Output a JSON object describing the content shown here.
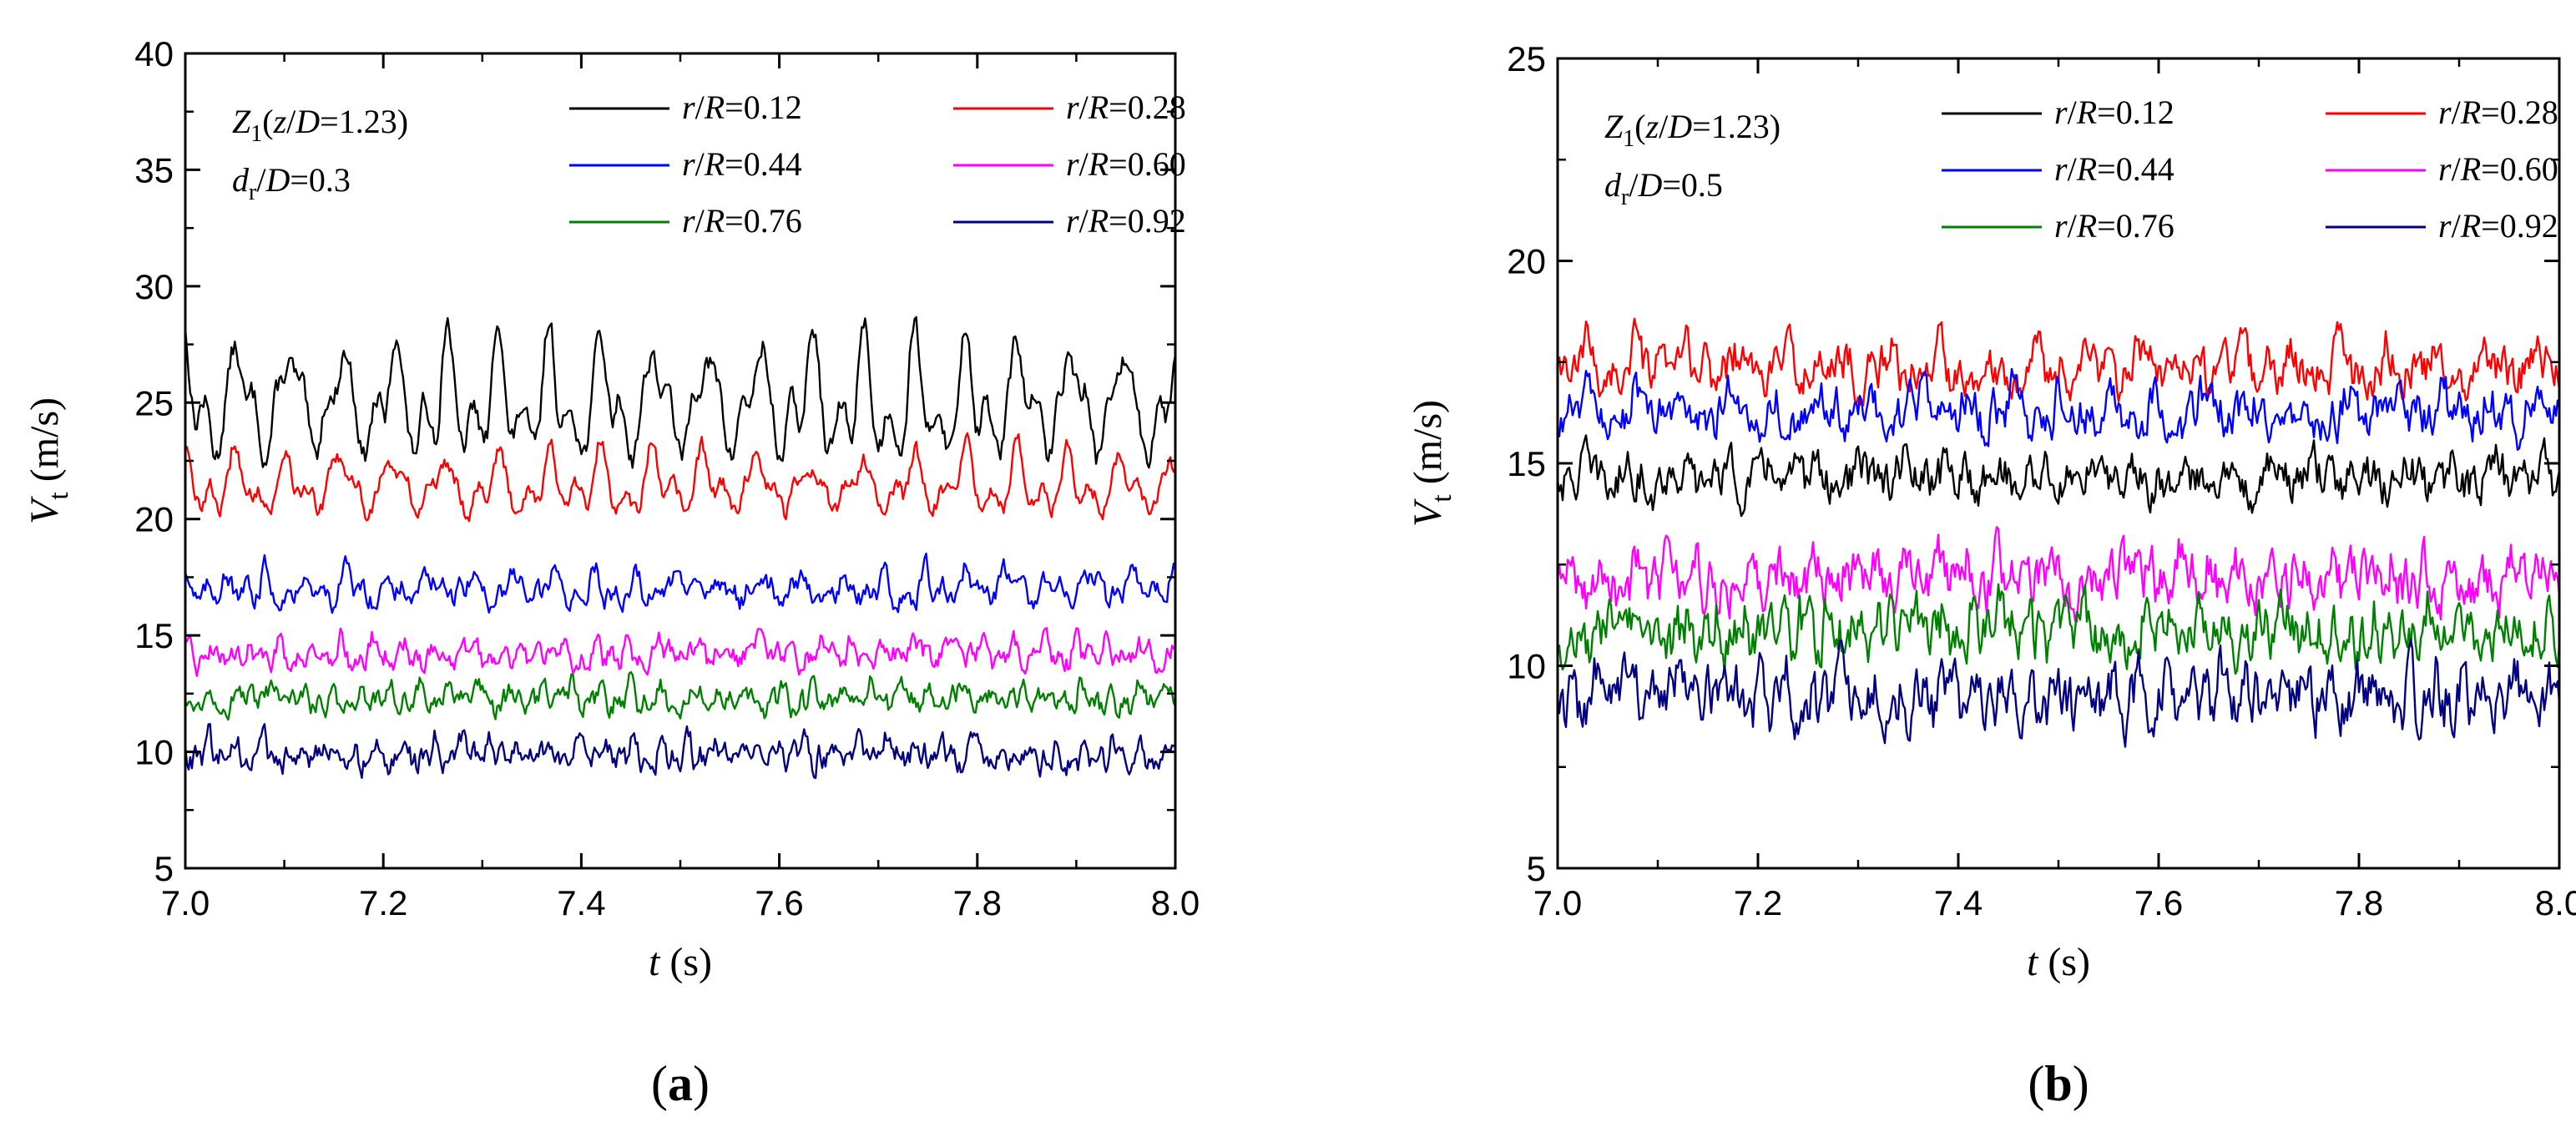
{
  "chart_data": [
    {
      "type": "line",
      "panel_label": "a",
      "xlabel": "t (s)",
      "ylabel": "Vt (m/s)",
      "xlim": [
        7.0,
        8.0
      ],
      "ylim": [
        5,
        40
      ],
      "xticks": [
        "7.0",
        "7.2",
        "7.4",
        "7.6",
        "7.8",
        "8.0"
      ],
      "yticks": [
        "5",
        "10",
        "15",
        "20",
        "25",
        "30",
        "35",
        "40"
      ],
      "annotation": [
        "Z1(z/D=1.23)",
        "dr/D=0.3"
      ],
      "legend_position": "top-right",
      "series": [
        {
          "name": "r/R=0.12",
          "color": "#000000",
          "mean": 24.5,
          "amp": 3.2,
          "f": 19,
          "noise": 0.9
        },
        {
          "name": "r/R=0.28",
          "color": "#ff0000",
          "mean": 21.2,
          "amp": 1.6,
          "f": 19,
          "noise": 0.7
        },
        {
          "name": "r/R=0.44",
          "color": "#0000ff",
          "mean": 16.9,
          "amp": 0.8,
          "f": 24,
          "noise": 0.8
        },
        {
          "name": "r/R=0.60",
          "color": "#ff00ff",
          "mean": 14.1,
          "amp": 0.6,
          "f": 31,
          "noise": 0.8
        },
        {
          "name": "r/R=0.76",
          "color": "#008000",
          "mean": 12.2,
          "amp": 0.6,
          "f": 33,
          "noise": 0.8
        },
        {
          "name": "r/R=0.92",
          "color": "#000080",
          "mean": 9.8,
          "amp": 0.6,
          "f": 35,
          "noise": 0.9
        }
      ]
    },
    {
      "type": "line",
      "panel_label": "b",
      "xlabel": "t (s)",
      "ylabel": "Vt (m/s)",
      "xlim": [
        7.0,
        8.0
      ],
      "ylim": [
        5,
        25
      ],
      "xticks": [
        "7.0",
        "7.2",
        "7.4",
        "7.6",
        "7.8",
        "8.0"
      ],
      "yticks": [
        "5",
        "10",
        "15",
        "20",
        "25"
      ],
      "annotation": [
        "Z1(z/D=1.23)",
        "dr/D=0.5"
      ],
      "legend_position": "top-right",
      "series": [
        {
          "name": "r/R=0.12",
          "color": "#000000",
          "mean": 14.6,
          "amp": 0.4,
          "f": 22,
          "noise": 0.9
        },
        {
          "name": "r/R=0.28",
          "color": "#ff0000",
          "mean": 17.3,
          "amp": 0.5,
          "f": 20,
          "noise": 0.9
        },
        {
          "name": "r/R=0.44",
          "color": "#0000ff",
          "mean": 16.2,
          "amp": 0.5,
          "f": 21,
          "noise": 0.9
        },
        {
          "name": "r/R=0.60",
          "color": "#ff00ff",
          "mean": 12.1,
          "amp": 0.4,
          "f": 33,
          "noise": 1.1
        },
        {
          "name": "r/R=0.76",
          "color": "#008000",
          "mean": 10.8,
          "amp": 0.5,
          "f": 35,
          "noise": 1.1
        },
        {
          "name": "r/R=0.92",
          "color": "#000080",
          "mean": 9.2,
          "amp": 0.5,
          "f": 37,
          "noise": 1.2
        }
      ]
    }
  ]
}
